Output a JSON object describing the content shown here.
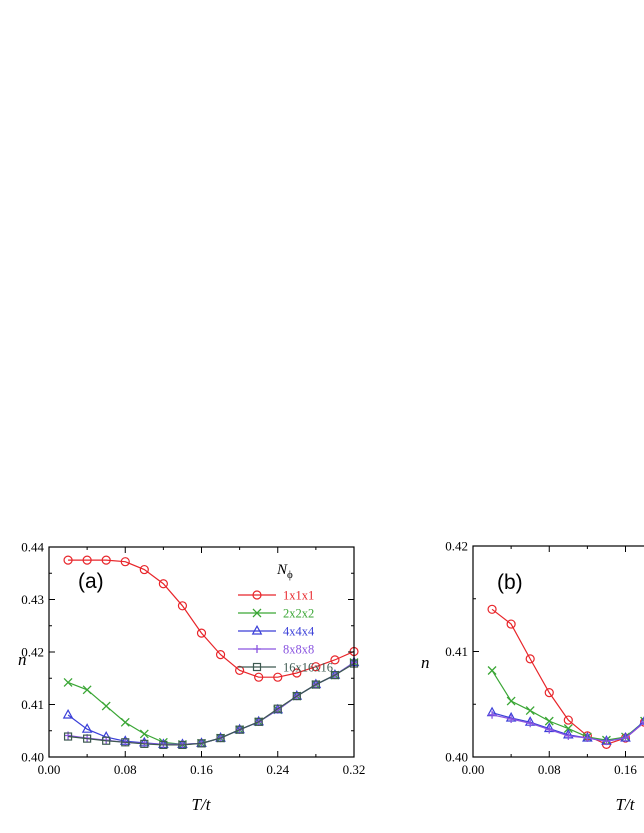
{
  "chart_data": [
    {
      "type": "line",
      "panel_label": "(a)",
      "xlabel": "T/t",
      "ylabel": "n",
      "xlim": [
        0.0,
        0.32
      ],
      "ylim": [
        0.4,
        0.44
      ],
      "xticks": [
        0.0,
        0.08,
        0.16,
        0.24,
        0.32
      ],
      "xtick_labels": [
        "0.00",
        "0.08",
        "0.16",
        "0.24",
        "0.32"
      ],
      "yticks": [
        0.4,
        0.41,
        0.42,
        0.43,
        0.44
      ],
      "ytick_labels": [
        "0.40",
        "0.41",
        "0.42",
        "0.43",
        "0.44"
      ],
      "legend_title": "N",
      "legend_title_sub": "ϕ",
      "legend_position": "top-right",
      "series": [
        {
          "name": "1x1x1",
          "color": "#e8252a",
          "marker": "circle",
          "x": [
            0.02,
            0.04,
            0.06,
            0.08,
            0.1,
            0.12,
            0.14,
            0.16,
            0.18,
            0.2,
            0.22,
            0.24,
            0.26,
            0.28,
            0.3,
            0.32
          ],
          "y": [
            0.4375,
            0.4375,
            0.4375,
            0.4372,
            0.4357,
            0.433,
            0.4288,
            0.4236,
            0.4195,
            0.4165,
            0.4152,
            0.4152,
            0.416,
            0.4172,
            0.4185,
            0.4201
          ]
        },
        {
          "name": "2x2x2",
          "color": "#3aa635",
          "marker": "x",
          "x": [
            0.02,
            0.04,
            0.06,
            0.08,
            0.1,
            0.12,
            0.14,
            0.16,
            0.18,
            0.2,
            0.22,
            0.24,
            0.26,
            0.28,
            0.3,
            0.32
          ],
          "y": [
            0.4142,
            0.4128,
            0.4097,
            0.4066,
            0.4044,
            0.4028,
            0.4024,
            0.4026,
            0.4036,
            0.4052,
            0.4067,
            0.409,
            0.4116,
            0.4138,
            0.4156,
            0.418
          ]
        },
        {
          "name": "4x4x4",
          "color": "#3a3fd8",
          "marker": "triangle",
          "x": [
            0.02,
            0.04,
            0.06,
            0.08,
            0.1,
            0.12,
            0.14,
            0.16,
            0.18,
            0.2,
            0.22,
            0.24,
            0.26,
            0.28,
            0.3,
            0.32
          ],
          "y": [
            0.408,
            0.4053,
            0.4038,
            0.403,
            0.4027,
            0.4024,
            0.4024,
            0.4026,
            0.4036,
            0.4052,
            0.4067,
            0.409,
            0.4116,
            0.4138,
            0.4156,
            0.418
          ]
        },
        {
          "name": "8x8x8",
          "color": "#8a55e0",
          "marker": "plus",
          "x": [
            0.02,
            0.04,
            0.06,
            0.08,
            0.1,
            0.12,
            0.14,
            0.16,
            0.18,
            0.2,
            0.22,
            0.24,
            0.26,
            0.28,
            0.3,
            0.32
          ],
          "y": [
            0.4041,
            0.4036,
            0.4032,
            0.4028,
            0.4026,
            0.4024,
            0.4024,
            0.4026,
            0.4036,
            0.4052,
            0.4067,
            0.409,
            0.4116,
            0.4138,
            0.4156,
            0.418
          ]
        },
        {
          "name": "16x16x16",
          "color": "#3d5950",
          "marker": "square",
          "x": [
            0.02,
            0.04,
            0.06,
            0.08,
            0.1,
            0.12,
            0.14,
            0.16,
            0.18,
            0.2,
            0.22,
            0.24,
            0.26,
            0.28,
            0.3,
            0.32
          ],
          "y": [
            0.4039,
            0.4035,
            0.4031,
            0.4028,
            0.4025,
            0.4023,
            0.4023,
            0.4026,
            0.4036,
            0.4052,
            0.4067,
            0.4092,
            0.4116,
            0.4138,
            0.4156,
            0.4178
          ]
        }
      ]
    },
    {
      "type": "line",
      "panel_label": "(b)",
      "xlabel": "T/t",
      "ylabel": "n",
      "xlim": [
        0.0,
        0.32
      ],
      "ylim": [
        0.4,
        0.42
      ],
      "xticks": [
        0.0,
        0.08,
        0.16
      ],
      "xtick_labels": [
        "0.00",
        "0.08",
        "0.16"
      ],
      "yticks": [
        0.4,
        0.41,
        0.42
      ],
      "ytick_labels": [
        "0.40",
        "0.41",
        "0.42"
      ],
      "series": [
        {
          "name": "1x1x1",
          "color": "#e8252a",
          "marker": "circle",
          "x": [
            0.02,
            0.04,
            0.06,
            0.08,
            0.1,
            0.12,
            0.14,
            0.16,
            0.18
          ],
          "y": [
            0.414,
            0.4126,
            0.4093,
            0.4061,
            0.4035,
            0.402,
            0.4012,
            0.4018,
            0.4033
          ]
        },
        {
          "name": "2x2x2",
          "color": "#3aa635",
          "marker": "x",
          "x": [
            0.02,
            0.04,
            0.06,
            0.08,
            0.1,
            0.12,
            0.14,
            0.16,
            0.18
          ],
          "y": [
            0.4082,
            0.4053,
            0.4044,
            0.4034,
            0.4027,
            0.4019,
            0.4016,
            0.4019,
            0.4034
          ]
        },
        {
          "name": "4x4x4",
          "color": "#3a3fd8",
          "marker": "triangle",
          "x": [
            0.02,
            0.04,
            0.06,
            0.08,
            0.1,
            0.12,
            0.14,
            0.16,
            0.18
          ],
          "y": [
            0.4042,
            0.4037,
            0.4033,
            0.4027,
            0.4021,
            0.4018,
            0.4015,
            0.4018,
            0.4034
          ]
        },
        {
          "name": "8x8x8",
          "color": "#8a55e0",
          "marker": "plus",
          "x": [
            0.02,
            0.04,
            0.06,
            0.08,
            0.1,
            0.12,
            0.14,
            0.16,
            0.18
          ],
          "y": [
            0.404,
            0.4036,
            0.4032,
            0.4026,
            0.402,
            0.4018,
            0.4015,
            0.4018,
            0.4033
          ]
        }
      ]
    }
  ]
}
